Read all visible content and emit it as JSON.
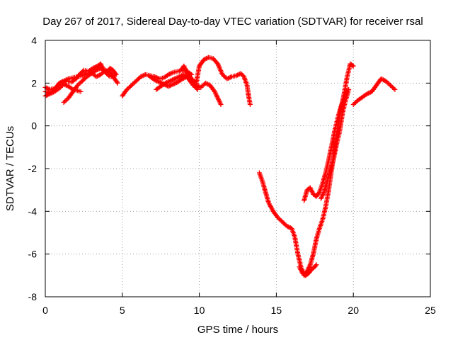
{
  "chart_data": {
    "type": "scatter",
    "title": "Day 267 of 2017, Sidereal Day-to-day VTEC variation (SDTVAR) for receiver rsal",
    "xlabel": "GPS time / hours",
    "ylabel": "SDTVAR / TECUs",
    "xlim": [
      0,
      25
    ],
    "ylim": [
      -8,
      4
    ],
    "x_ticks": [
      "0",
      "5",
      "10",
      "15",
      "20",
      "25"
    ],
    "y_ticks": [
      "4",
      "2",
      "0",
      "-2",
      "-4",
      "-6",
      "-8"
    ],
    "grid": true,
    "marker": "plus",
    "color": "#ff0000",
    "series": [
      {
        "values": [
          [
            0.0,
            1.8
          ],
          [
            0.3,
            1.7
          ],
          [
            0.6,
            1.75
          ],
          [
            0.9,
            1.9
          ],
          [
            1.1,
            2.05
          ],
          [
            1.4,
            2.1
          ],
          [
            1.7,
            2.05
          ],
          [
            2.0,
            2.2
          ],
          [
            2.2,
            2.4
          ],
          [
            2.5,
            2.6
          ],
          [
            2.8,
            2.55
          ],
          [
            3.1,
            2.7
          ],
          [
            3.4,
            2.8
          ],
          [
            3.6,
            2.9
          ],
          [
            3.8,
            2.6
          ],
          [
            4.0,
            2.5
          ],
          [
            4.2,
            2.7
          ],
          [
            4.4,
            2.6
          ],
          [
            4.6,
            2.4
          ]
        ]
      },
      {
        "values": [
          [
            0.0,
            1.4
          ],
          [
            0.3,
            1.5
          ],
          [
            0.6,
            1.6
          ],
          [
            0.9,
            1.75
          ],
          [
            1.2,
            1.95
          ],
          [
            1.5,
            1.85
          ],
          [
            1.8,
            1.7
          ],
          [
            2.1,
            1.65
          ],
          [
            2.3,
            1.6
          ]
        ]
      },
      {
        "values": [
          [
            0.0,
            1.6
          ],
          [
            0.3,
            1.55
          ],
          [
            0.6,
            1.7
          ],
          [
            0.9,
            2.0
          ],
          [
            1.2,
            2.1
          ],
          [
            1.5,
            2.2
          ],
          [
            1.8,
            2.25
          ],
          [
            2.1,
            2.3
          ],
          [
            2.4,
            2.35
          ],
          [
            2.7,
            2.45
          ],
          [
            3.0,
            2.5
          ],
          [
            3.3,
            2.3
          ],
          [
            3.6,
            2.4
          ],
          [
            3.9,
            2.6
          ],
          [
            4.2,
            2.5
          ],
          [
            4.5,
            2.2
          ],
          [
            4.7,
            2.0
          ]
        ]
      },
      {
        "values": [
          [
            1.2,
            1.1
          ],
          [
            1.5,
            1.3
          ],
          [
            1.8,
            1.6
          ],
          [
            2.1,
            1.9
          ],
          [
            2.4,
            2.1
          ],
          [
            2.7,
            2.3
          ],
          [
            3.0,
            2.45
          ],
          [
            3.3,
            2.6
          ],
          [
            3.6,
            2.7
          ],
          [
            3.9,
            2.5
          ],
          [
            4.2,
            2.3
          ],
          [
            4.5,
            2.35
          ]
        ]
      },
      {
        "values": [
          [
            5.0,
            1.4
          ],
          [
            5.3,
            1.7
          ],
          [
            5.6,
            1.9
          ],
          [
            5.9,
            2.1
          ],
          [
            6.2,
            2.3
          ],
          [
            6.5,
            2.4
          ],
          [
            6.8,
            2.35
          ],
          [
            7.1,
            2.3
          ],
          [
            7.4,
            2.2
          ],
          [
            7.7,
            2.25
          ],
          [
            8.0,
            2.4
          ],
          [
            8.3,
            2.5
          ],
          [
            8.6,
            2.55
          ],
          [
            8.9,
            2.6
          ],
          [
            9.2,
            2.55
          ],
          [
            9.5,
            2.4
          ]
        ]
      },
      {
        "values": [
          [
            6.8,
            2.3
          ],
          [
            7.1,
            2.15
          ],
          [
            7.4,
            2.05
          ],
          [
            7.7,
            1.95
          ],
          [
            8.0,
            1.85
          ],
          [
            8.3,
            1.95
          ],
          [
            8.6,
            2.05
          ],
          [
            8.9,
            2.2
          ],
          [
            9.2,
            2.3
          ],
          [
            9.5,
            2.1
          ],
          [
            9.8,
            1.9
          ],
          [
            10.1,
            1.8
          ],
          [
            10.4,
            2.0
          ],
          [
            10.7,
            1.9
          ],
          [
            11.0,
            1.6
          ],
          [
            11.2,
            1.3
          ],
          [
            11.4,
            1.0
          ]
        ]
      },
      {
        "values": [
          [
            7.2,
            1.7
          ],
          [
            7.5,
            1.85
          ],
          [
            7.8,
            2.0
          ],
          [
            8.1,
            2.1
          ],
          [
            8.4,
            2.2
          ],
          [
            8.7,
            2.3
          ],
          [
            9.0,
            2.4
          ],
          [
            9.3,
            2.2
          ],
          [
            9.6,
            1.9
          ],
          [
            9.9,
            1.7
          ]
        ]
      },
      {
        "values": [
          [
            8.8,
            2.6
          ],
          [
            9.0,
            2.8
          ],
          [
            9.2,
            2.5
          ],
          [
            9.5,
            2.2
          ],
          [
            9.8,
            2.0
          ],
          [
            10.0,
            2.8
          ],
          [
            10.3,
            3.1
          ],
          [
            10.6,
            3.2
          ],
          [
            10.9,
            3.15
          ],
          [
            11.2,
            2.9
          ],
          [
            11.5,
            2.4
          ],
          [
            11.8,
            2.2
          ],
          [
            12.1,
            2.3
          ],
          [
            12.4,
            2.35
          ],
          [
            12.7,
            2.45
          ],
          [
            12.9,
            2.3
          ],
          [
            13.1,
            1.9
          ],
          [
            13.2,
            1.4
          ],
          [
            13.3,
            1.0
          ]
        ]
      },
      {
        "values": [
          [
            13.9,
            -2.2
          ],
          [
            14.1,
            -2.6
          ],
          [
            14.3,
            -3.1
          ],
          [
            14.5,
            -3.6
          ],
          [
            14.8,
            -4.0
          ],
          [
            15.1,
            -4.3
          ],
          [
            15.4,
            -4.5
          ],
          [
            15.7,
            -4.7
          ],
          [
            16.0,
            -4.8
          ],
          [
            16.2,
            -5.2
          ],
          [
            16.4,
            -6.0
          ],
          [
            16.6,
            -6.6
          ],
          [
            16.8,
            -7.0
          ],
          [
            17.0,
            -6.8
          ],
          [
            17.2,
            -6.5
          ],
          [
            17.4,
            -6.0
          ],
          [
            17.6,
            -5.3
          ],
          [
            17.8,
            -4.8
          ],
          [
            18.0,
            -4.4
          ],
          [
            18.2,
            -3.8
          ],
          [
            18.4,
            -3.0
          ],
          [
            18.6,
            -2.0
          ],
          [
            18.8,
            -1.0
          ],
          [
            19.0,
            0.0
          ],
          [
            19.2,
            0.8
          ],
          [
            19.4,
            1.5
          ],
          [
            19.6,
            2.3
          ],
          [
            19.8,
            2.9
          ],
          [
            20.0,
            2.8
          ]
        ]
      },
      {
        "values": [
          [
            16.8,
            -3.5
          ],
          [
            17.0,
            -3.0
          ],
          [
            17.2,
            -2.9
          ],
          [
            17.4,
            -3.2
          ],
          [
            17.6,
            -3.3
          ],
          [
            17.8,
            -3.1
          ],
          [
            18.0,
            -2.7
          ],
          [
            18.2,
            -2.2
          ],
          [
            18.4,
            -1.6
          ],
          [
            18.6,
            -0.9
          ],
          [
            18.8,
            -0.2
          ],
          [
            19.0,
            0.4
          ],
          [
            19.2,
            0.9
          ],
          [
            19.4,
            1.3
          ],
          [
            19.6,
            1.7
          ]
        ]
      },
      {
        "values": [
          [
            16.5,
            -6.6
          ],
          [
            16.7,
            -6.9
          ],
          [
            16.9,
            -7.0
          ],
          [
            17.1,
            -6.9
          ],
          [
            17.3,
            -6.7
          ],
          [
            17.5,
            -6.6
          ],
          [
            17.6,
            -6.5
          ]
        ]
      },
      {
        "values": [
          [
            17.9,
            -3.4
          ],
          [
            18.1,
            -3.1
          ],
          [
            18.3,
            -2.6
          ],
          [
            18.5,
            -2.1
          ],
          [
            18.7,
            -1.6
          ],
          [
            18.9,
            -0.9
          ],
          [
            19.1,
            -0.3
          ],
          [
            19.3,
            0.6
          ],
          [
            19.5,
            1.2
          ],
          [
            19.7,
            1.7
          ]
        ]
      },
      {
        "values": [
          [
            20.0,
            1.0
          ],
          [
            20.3,
            1.2
          ],
          [
            20.6,
            1.35
          ],
          [
            20.9,
            1.5
          ],
          [
            21.2,
            1.6
          ],
          [
            21.5,
            1.9
          ],
          [
            21.8,
            2.2
          ],
          [
            22.1,
            2.1
          ],
          [
            22.4,
            1.9
          ],
          [
            22.7,
            1.7
          ]
        ]
      }
    ]
  }
}
